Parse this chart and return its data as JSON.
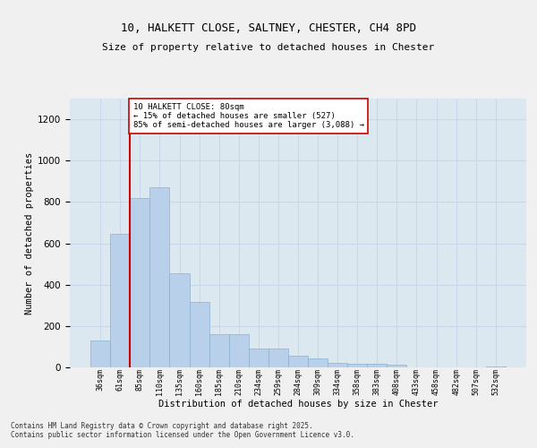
{
  "title_line1": "10, HALKETT CLOSE, SALTNEY, CHESTER, CH4 8PD",
  "title_line2": "Size of property relative to detached houses in Chester",
  "xlabel": "Distribution of detached houses by size in Chester",
  "ylabel": "Number of detached properties",
  "bar_labels": [
    "36sqm",
    "61sqm",
    "85sqm",
    "110sqm",
    "135sqm",
    "160sqm",
    "185sqm",
    "210sqm",
    "234sqm",
    "259sqm",
    "284sqm",
    "309sqm",
    "334sqm",
    "358sqm",
    "383sqm",
    "408sqm",
    "433sqm",
    "458sqm",
    "482sqm",
    "507sqm",
    "532sqm"
  ],
  "bar_values": [
    130,
    645,
    820,
    870,
    455,
    315,
    160,
    160,
    90,
    90,
    55,
    42,
    20,
    18,
    18,
    12,
    0,
    0,
    0,
    0,
    5
  ],
  "bar_color": "#b8d0ea",
  "bar_edge_color": "#8ab0d0",
  "vline_x_index": 2,
  "vline_color": "#cc0000",
  "annotation_text": "10 HALKETT CLOSE: 80sqm\n← 15% of detached houses are smaller (527)\n85% of semi-detached houses are larger (3,088) →",
  "annotation_box_color": "#ffffff",
  "annotation_box_edge": "#cc0000",
  "ylim": [
    0,
    1300
  ],
  "yticks": [
    0,
    200,
    400,
    600,
    800,
    1000,
    1200
  ],
  "grid_color": "#c8d8e8",
  "plot_bg_color": "#dce8f0",
  "fig_bg_color": "#f0f0f0",
  "footer_line1": "Contains HM Land Registry data © Crown copyright and database right 2025.",
  "footer_line2": "Contains public sector information licensed under the Open Government Licence v3.0."
}
